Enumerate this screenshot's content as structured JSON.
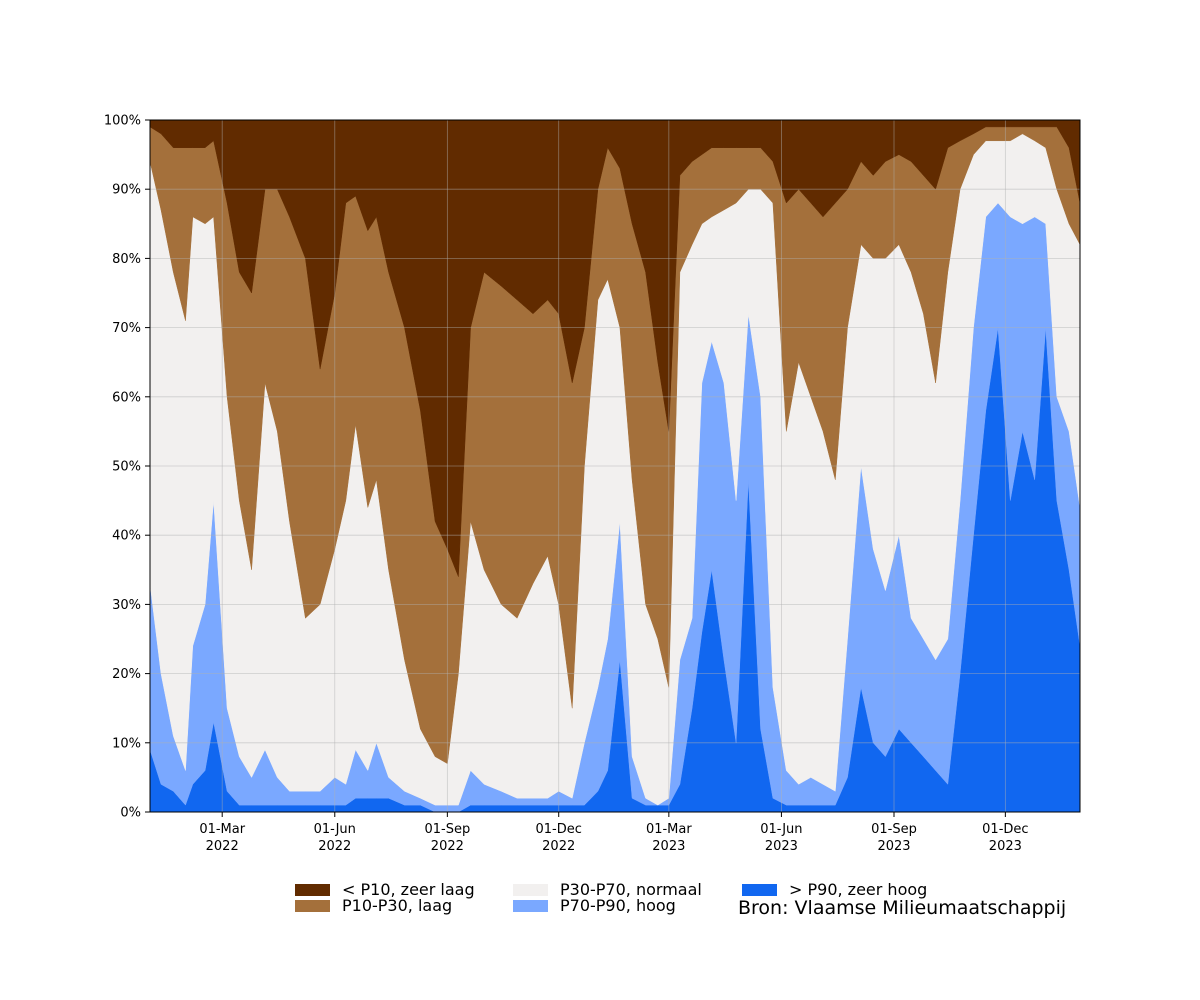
{
  "chart_data": {
    "type": "area",
    "stacked": true,
    "percent": true,
    "x_start": "2022-01-01",
    "x_end": "2024-01-31",
    "ylim": [
      0,
      100
    ],
    "grid": true,
    "legend_position": "bottom",
    "x_ticks": [
      {
        "date": "2022-03-01",
        "line1": "01-Mar",
        "line2": "2022"
      },
      {
        "date": "2022-06-01",
        "line1": "01-Jun",
        "line2": "2022"
      },
      {
        "date": "2022-09-01",
        "line1": "01-Sep",
        "line2": "2022"
      },
      {
        "date": "2022-12-01",
        "line1": "01-Dec",
        "line2": "2022"
      },
      {
        "date": "2023-03-01",
        "line1": "01-Mar",
        "line2": "2023"
      },
      {
        "date": "2023-06-01",
        "line1": "01-Jun",
        "line2": "2023"
      },
      {
        "date": "2023-09-01",
        "line1": "01-Sep",
        "line2": "2023"
      },
      {
        "date": "2023-12-01",
        "line1": "01-Dec",
        "line2": "2023"
      }
    ],
    "y_ticks": [
      {
        "value": 0,
        "label": "0%"
      },
      {
        "value": 10,
        "label": "10%"
      },
      {
        "value": 20,
        "label": "20%"
      },
      {
        "value": 30,
        "label": "30%"
      },
      {
        "value": 40,
        "label": "40%"
      },
      {
        "value": 50,
        "label": "50%"
      },
      {
        "value": 60,
        "label": "60%"
      },
      {
        "value": 70,
        "label": "70%"
      },
      {
        "value": 80,
        "label": "80%"
      },
      {
        "value": 90,
        "label": "90%"
      },
      {
        "value": 100,
        "label": "100%"
      }
    ],
    "series_order_bottom_to_top": [
      "> P90, zeer hoog",
      "P70-P90, hoog",
      "P30-P70, normaal",
      "P10-P30, laag",
      "< P10, zeer laag"
    ],
    "colors": {
      "> P90, zeer hoog": "#1167f0",
      "P70-P90, hoog": "#7aa8ff",
      "P30-P70, normaal": "#f2f0ef",
      "P10-P30, laag": "#a4703b",
      "< P10, zeer laag": "#612b00"
    },
    "boundaries_note": "cumulative upper edges (%) per date: b1 = top of > P90, b2 = top of P70-P90, b3 = top of P30-P70, b4 = top of P10-P30",
    "boundaries": [
      {
        "date": "2022-01-01",
        "b1": 9,
        "b2": 33,
        "b3": 94,
        "b4": 99
      },
      {
        "date": "2022-01-10",
        "b1": 4,
        "b2": 20,
        "b3": 87,
        "b4": 98
      },
      {
        "date": "2022-01-20",
        "b1": 3,
        "b2": 11,
        "b3": 78,
        "b4": 96
      },
      {
        "date": "2022-01-30",
        "b1": 1,
        "b2": 6,
        "b3": 71,
        "b4": 96
      },
      {
        "date": "2022-02-05",
        "b1": 4,
        "b2": 24,
        "b3": 86,
        "b4": 96
      },
      {
        "date": "2022-02-15",
        "b1": 6,
        "b2": 30,
        "b3": 85,
        "b4": 96
      },
      {
        "date": "2022-02-22",
        "b1": 13,
        "b2": 45,
        "b3": 86,
        "b4": 97
      },
      {
        "date": "2022-03-05",
        "b1": 3,
        "b2": 15,
        "b3": 60,
        "b4": 88
      },
      {
        "date": "2022-03-15",
        "b1": 1,
        "b2": 8,
        "b3": 45,
        "b4": 78
      },
      {
        "date": "2022-03-25",
        "b1": 1,
        "b2": 5,
        "b3": 35,
        "b4": 75
      },
      {
        "date": "2022-04-05",
        "b1": 1,
        "b2": 9,
        "b3": 62,
        "b4": 90
      },
      {
        "date": "2022-04-15",
        "b1": 1,
        "b2": 5,
        "b3": 55,
        "b4": 90
      },
      {
        "date": "2022-04-25",
        "b1": 1,
        "b2": 3,
        "b3": 42,
        "b4": 86
      },
      {
        "date": "2022-05-08",
        "b1": 1,
        "b2": 3,
        "b3": 28,
        "b4": 80
      },
      {
        "date": "2022-05-20",
        "b1": 1,
        "b2": 3,
        "b3": 30,
        "b4": 64
      },
      {
        "date": "2022-06-01",
        "b1": 1,
        "b2": 5,
        "b3": 38,
        "b4": 75
      },
      {
        "date": "2022-06-10",
        "b1": 1,
        "b2": 4,
        "b3": 45,
        "b4": 88
      },
      {
        "date": "2022-06-18",
        "b1": 2,
        "b2": 9,
        "b3": 56,
        "b4": 89
      },
      {
        "date": "2022-06-28",
        "b1": 2,
        "b2": 6,
        "b3": 44,
        "b4": 84
      },
      {
        "date": "2022-07-05",
        "b1": 2,
        "b2": 10,
        "b3": 48,
        "b4": 86
      },
      {
        "date": "2022-07-15",
        "b1": 2,
        "b2": 5,
        "b3": 35,
        "b4": 78
      },
      {
        "date": "2022-07-28",
        "b1": 1,
        "b2": 3,
        "b3": 22,
        "b4": 70
      },
      {
        "date": "2022-08-10",
        "b1": 1,
        "b2": 2,
        "b3": 12,
        "b4": 58
      },
      {
        "date": "2022-08-22",
        "b1": 0,
        "b2": 1,
        "b3": 8,
        "b4": 42
      },
      {
        "date": "2022-09-01",
        "b1": 0,
        "b2": 1,
        "b3": 7,
        "b4": 38
      },
      {
        "date": "2022-09-10",
        "b1": 0,
        "b2": 1,
        "b3": 20,
        "b4": 34
      },
      {
        "date": "2022-09-20",
        "b1": 1,
        "b2": 6,
        "b3": 42,
        "b4": 70
      },
      {
        "date": "2022-10-01",
        "b1": 1,
        "b2": 4,
        "b3": 35,
        "b4": 78
      },
      {
        "date": "2022-10-15",
        "b1": 1,
        "b2": 3,
        "b3": 30,
        "b4": 76
      },
      {
        "date": "2022-10-28",
        "b1": 1,
        "b2": 2,
        "b3": 28,
        "b4": 74
      },
      {
        "date": "2022-11-10",
        "b1": 1,
        "b2": 2,
        "b3": 33,
        "b4": 72
      },
      {
        "date": "2022-11-22",
        "b1": 1,
        "b2": 2,
        "b3": 37,
        "b4": 74
      },
      {
        "date": "2022-12-01",
        "b1": 1,
        "b2": 3,
        "b3": 30,
        "b4": 72
      },
      {
        "date": "2022-12-12",
        "b1": 1,
        "b2": 2,
        "b3": 15,
        "b4": 62
      },
      {
        "date": "2022-12-22",
        "b1": 1,
        "b2": 10,
        "b3": 50,
        "b4": 70
      },
      {
        "date": "2023-01-02",
        "b1": 3,
        "b2": 18,
        "b3": 74,
        "b4": 90
      },
      {
        "date": "2023-01-10",
        "b1": 6,
        "b2": 25,
        "b3": 77,
        "b4": 96
      },
      {
        "date": "2023-01-20",
        "b1": 22,
        "b2": 42,
        "b3": 70,
        "b4": 93
      },
      {
        "date": "2023-01-30",
        "b1": 2,
        "b2": 8,
        "b3": 48,
        "b4": 85
      },
      {
        "date": "2023-02-10",
        "b1": 1,
        "b2": 2,
        "b3": 30,
        "b4": 78
      },
      {
        "date": "2023-02-20",
        "b1": 1,
        "b2": 1,
        "b3": 25,
        "b4": 65
      },
      {
        "date": "2023-03-01",
        "b1": 1,
        "b2": 2,
        "b3": 18,
        "b4": 55
      },
      {
        "date": "2023-03-10",
        "b1": 4,
        "b2": 22,
        "b3": 78,
        "b4": 92
      },
      {
        "date": "2023-03-20",
        "b1": 15,
        "b2": 28,
        "b3": 82,
        "b4": 94
      },
      {
        "date": "2023-03-28",
        "b1": 26,
        "b2": 62,
        "b3": 85,
        "b4": 95
      },
      {
        "date": "2023-04-05",
        "b1": 35,
        "b2": 68,
        "b3": 86,
        "b4": 96
      },
      {
        "date": "2023-04-15",
        "b1": 22,
        "b2": 62,
        "b3": 87,
        "b4": 96
      },
      {
        "date": "2023-04-25",
        "b1": 10,
        "b2": 45,
        "b3": 88,
        "b4": 96
      },
      {
        "date": "2023-05-05",
        "b1": 48,
        "b2": 72,
        "b3": 90,
        "b4": 96
      },
      {
        "date": "2023-05-15",
        "b1": 12,
        "b2": 60,
        "b3": 90,
        "b4": 96
      },
      {
        "date": "2023-05-25",
        "b1": 2,
        "b2": 18,
        "b3": 88,
        "b4": 94
      },
      {
        "date": "2023-06-05",
        "b1": 1,
        "b2": 6,
        "b3": 55,
        "b4": 88
      },
      {
        "date": "2023-06-15",
        "b1": 1,
        "b2": 4,
        "b3": 65,
        "b4": 90
      },
      {
        "date": "2023-06-25",
        "b1": 1,
        "b2": 5,
        "b3": 60,
        "b4": 88
      },
      {
        "date": "2023-07-05",
        "b1": 1,
        "b2": 4,
        "b3": 55,
        "b4": 86
      },
      {
        "date": "2023-07-15",
        "b1": 1,
        "b2": 3,
        "b3": 48,
        "b4": 88
      },
      {
        "date": "2023-07-25",
        "b1": 5,
        "b2": 25,
        "b3": 70,
        "b4": 90
      },
      {
        "date": "2023-08-05",
        "b1": 18,
        "b2": 50,
        "b3": 82,
        "b4": 94
      },
      {
        "date": "2023-08-15",
        "b1": 10,
        "b2": 38,
        "b3": 80,
        "b4": 92
      },
      {
        "date": "2023-08-25",
        "b1": 8,
        "b2": 32,
        "b3": 80,
        "b4": 94
      },
      {
        "date": "2023-09-05",
        "b1": 12,
        "b2": 40,
        "b3": 82,
        "b4": 95
      },
      {
        "date": "2023-09-15",
        "b1": 10,
        "b2": 28,
        "b3": 78,
        "b4": 94
      },
      {
        "date": "2023-09-25",
        "b1": 8,
        "b2": 25,
        "b3": 72,
        "b4": 92
      },
      {
        "date": "2023-10-05",
        "b1": 6,
        "b2": 22,
        "b3": 62,
        "b4": 90
      },
      {
        "date": "2023-10-15",
        "b1": 4,
        "b2": 25,
        "b3": 78,
        "b4": 96
      },
      {
        "date": "2023-10-25",
        "b1": 20,
        "b2": 45,
        "b3": 90,
        "b4": 97
      },
      {
        "date": "2023-11-05",
        "b1": 40,
        "b2": 70,
        "b3": 95,
        "b4": 98
      },
      {
        "date": "2023-11-15",
        "b1": 58,
        "b2": 86,
        "b3": 97,
        "b4": 99
      },
      {
        "date": "2023-11-25",
        "b1": 70,
        "b2": 88,
        "b3": 97,
        "b4": 99
      },
      {
        "date": "2023-12-05",
        "b1": 45,
        "b2": 86,
        "b3": 97,
        "b4": 99
      },
      {
        "date": "2023-12-15",
        "b1": 55,
        "b2": 85,
        "b3": 98,
        "b4": 99
      },
      {
        "date": "2023-12-25",
        "b1": 48,
        "b2": 86,
        "b3": 97,
        "b4": 99
      },
      {
        "date": "2024-01-03",
        "b1": 70,
        "b2": 85,
        "b3": 96,
        "b4": 99
      },
      {
        "date": "2024-01-12",
        "b1": 45,
        "b2": 60,
        "b3": 90,
        "b4": 99
      },
      {
        "date": "2024-01-22",
        "b1": 35,
        "b2": 55,
        "b3": 85,
        "b4": 96
      },
      {
        "date": "2024-01-31",
        "b1": 24,
        "b2": 44,
        "b3": 82,
        "b4": 88
      }
    ]
  },
  "legend": {
    "items": [
      {
        "label": "< P10, zeer laag",
        "color": "#612b00"
      },
      {
        "label": "P10-P30, laag",
        "color": "#a4703b"
      },
      {
        "label": "P30-P70, normaal",
        "color": "#f2f0ef"
      },
      {
        "label": "P70-P90, hoog",
        "color": "#7aa8ff"
      },
      {
        "label": "> P90, zeer hoog",
        "color": "#1167f0"
      }
    ]
  },
  "source": "Bron: Vlaamse Milieumaatschappij"
}
